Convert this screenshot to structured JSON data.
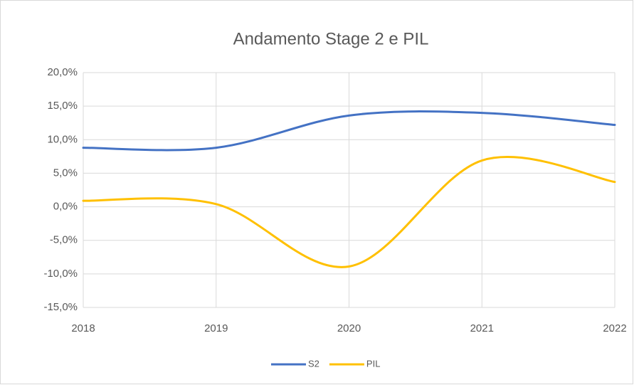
{
  "chart_data": {
    "type": "line",
    "title": "Andamento Stage 2 e PIL",
    "categories": [
      "2018",
      "2019",
      "2020",
      "2021",
      "2022"
    ],
    "series": [
      {
        "name": "S2",
        "color": "#4472c4",
        "values": [
          8.8,
          8.8,
          13.6,
          14.0,
          12.2
        ]
      },
      {
        "name": "PIL",
        "color": "#ffc000",
        "values": [
          0.9,
          0.4,
          -8.9,
          6.9,
          3.7
        ]
      }
    ],
    "ylim": [
      -15,
      20
    ],
    "yticks": [
      {
        "value": -15,
        "label": "-15,0%"
      },
      {
        "value": -10,
        "label": "-10,0%"
      },
      {
        "value": -5,
        "label": "-5,0%"
      },
      {
        "value": 0,
        "label": "0,0%"
      },
      {
        "value": 5,
        "label": "5,0%"
      },
      {
        "value": 10,
        "label": "10,0%"
      },
      {
        "value": 15,
        "label": "15,0%"
      },
      {
        "value": 20,
        "label": "20,0%"
      }
    ],
    "grid": true,
    "legend": "bottom"
  }
}
